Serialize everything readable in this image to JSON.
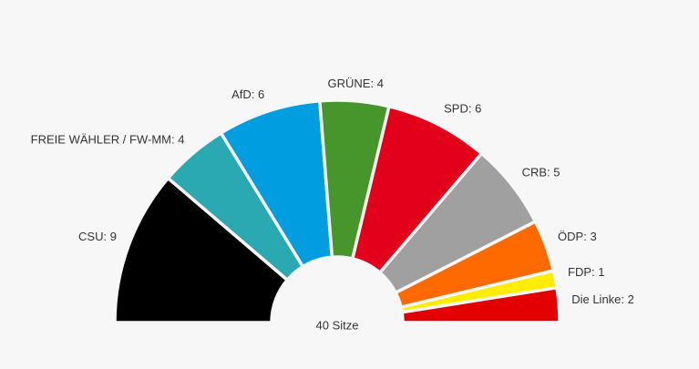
{
  "chart_data": {
    "type": "parliament",
    "values": [
      9,
      4,
      6,
      4,
      6,
      5,
      3,
      1,
      2
    ],
    "value_labels": [
      "CSU: 9",
      "FREIE WÄHLER / FW-MM: 4",
      "AfD: 6",
      "GRÜNE: 4",
      "SPD: 6",
      "CRB: 5",
      "ÖDP: 3",
      "FDP: 1",
      "Die Linke: 2"
    ],
    "colors": [
      "#000000",
      "#2aa9b2",
      "#009ee0",
      "#46962b",
      "#e2001a",
      "#a0a0a0",
      "#ff6a00",
      "#ffed00",
      "#e30000"
    ],
    "center_label": "40 Sitze"
  }
}
